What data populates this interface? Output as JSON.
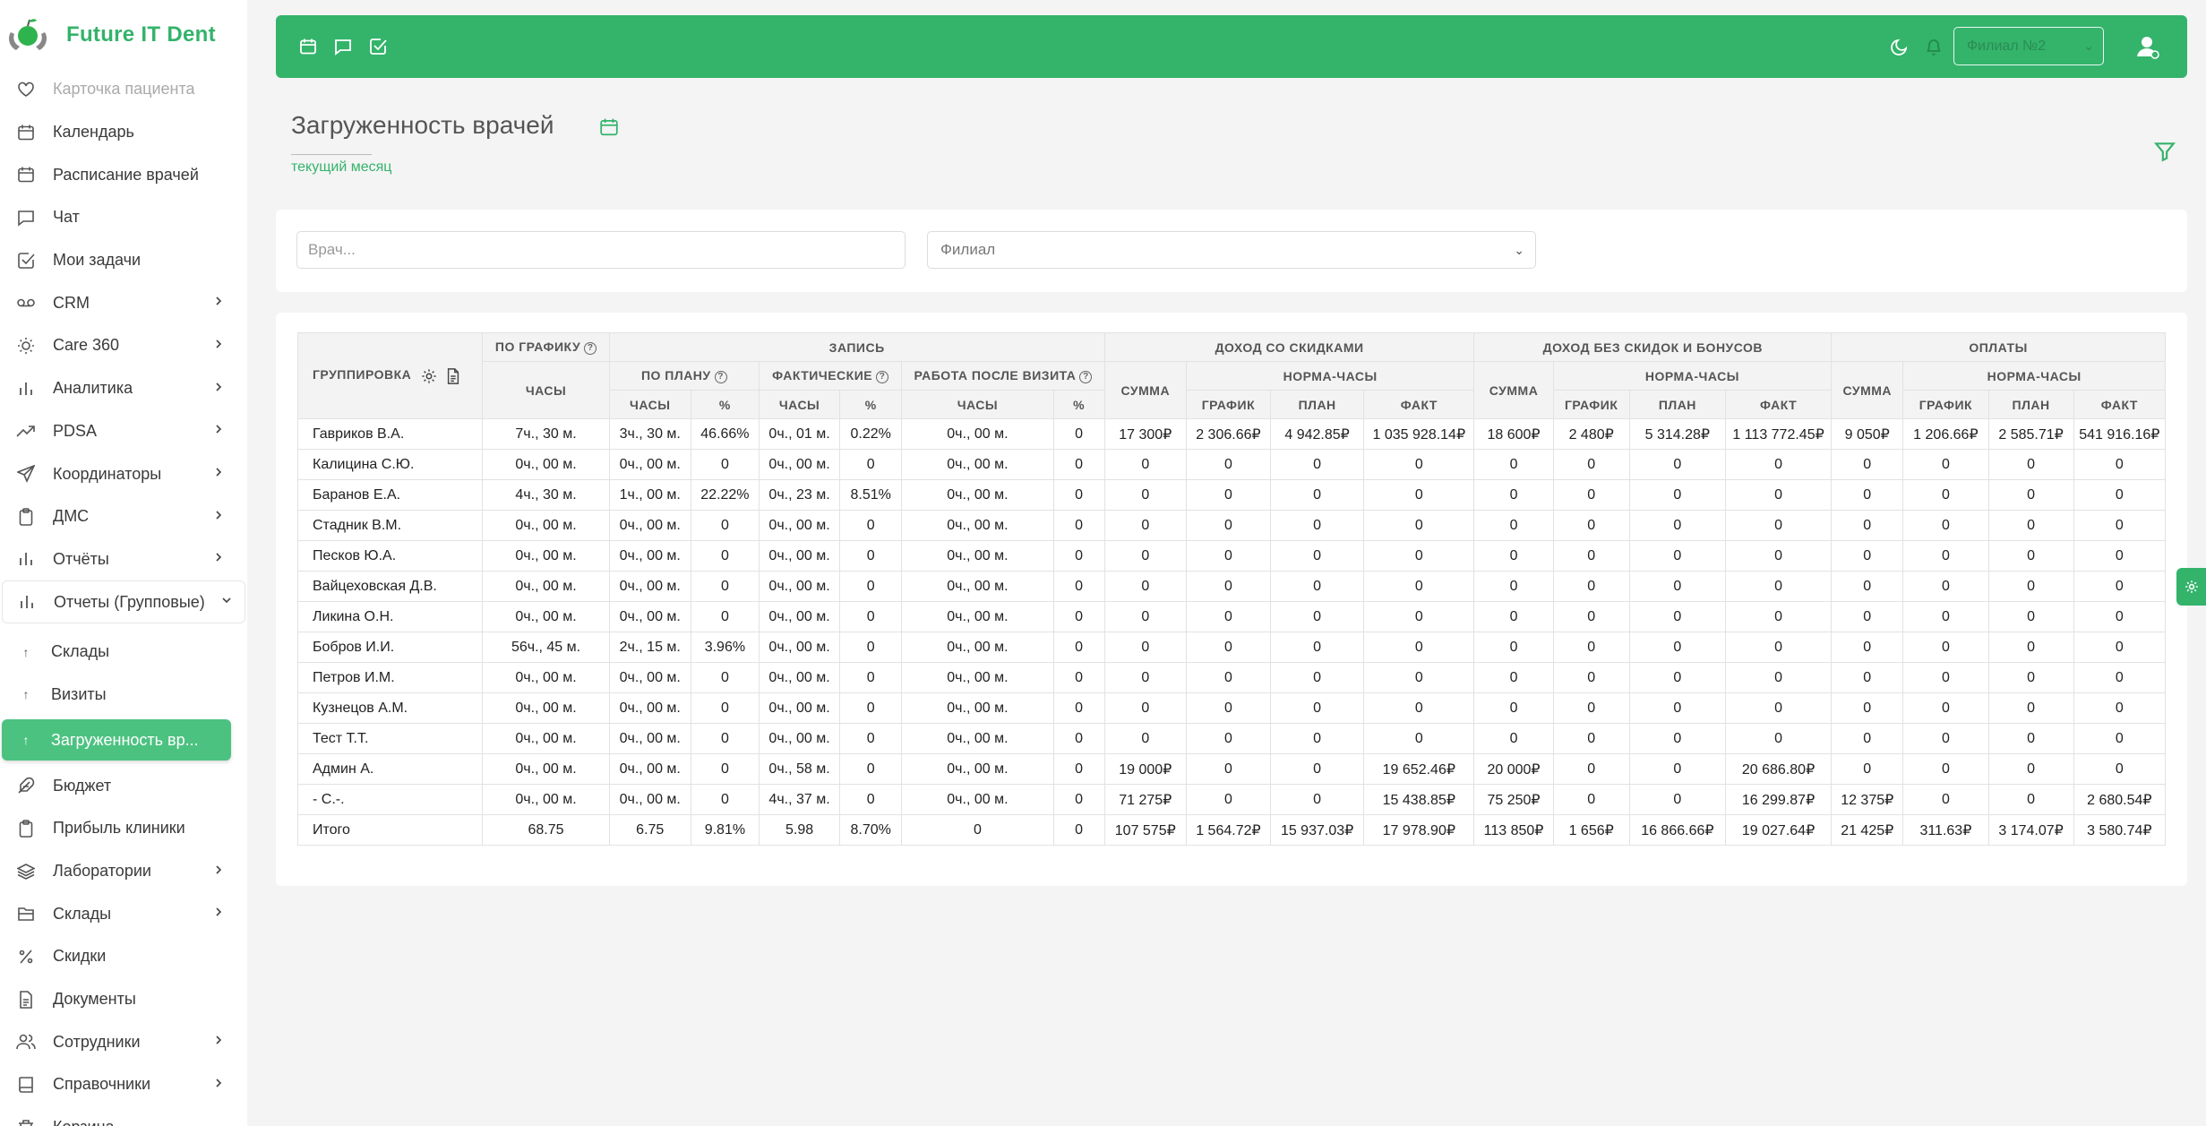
{
  "app": {
    "name": "Future IT Dent"
  },
  "sidebar": {
    "items": [
      {
        "label": "Карточка пациента",
        "icon": "heart-icon",
        "faded": true
      },
      {
        "label": "Календарь",
        "icon": "calendar-icon"
      },
      {
        "label": "Расписание врачей",
        "icon": "calendar-icon"
      },
      {
        "label": "Чат",
        "icon": "chat-icon"
      },
      {
        "label": "Мои задачи",
        "icon": "checkbox-icon"
      },
      {
        "label": "CRM",
        "icon": "voicemail-icon",
        "chevron": true
      },
      {
        "label": "Care 360",
        "icon": "sun-icon",
        "chevron": true
      },
      {
        "label": "Аналитика",
        "icon": "bar-chart-icon",
        "chevron": true
      },
      {
        "label": "PDSA",
        "icon": "trend-icon",
        "chevron": true
      },
      {
        "label": "Координаторы",
        "icon": "send-icon",
        "chevron": true
      },
      {
        "label": "ДМС",
        "icon": "clipboard-icon",
        "chevron": true
      },
      {
        "label": "Отчёты",
        "icon": "bar-chart-icon",
        "chevron": true
      },
      {
        "label": "Отчеты (Групповые)",
        "icon": "bar-chart-icon",
        "chevron_down": true,
        "group": true
      },
      {
        "label": "Склады",
        "icon": "sub-icon",
        "sub": true
      },
      {
        "label": "Визиты",
        "icon": "sub-icon",
        "sub": true
      },
      {
        "label": "Загруженность вр...",
        "icon": "sub-icon",
        "sub": true,
        "active": true
      },
      {
        "label": "Бюджет",
        "icon": "feather-icon"
      },
      {
        "label": "Прибыль клиники",
        "icon": "clipboard-icon"
      },
      {
        "label": "Лаборатории",
        "icon": "layers-icon",
        "chevron": true
      },
      {
        "label": "Склады",
        "icon": "archive-icon",
        "chevron": true
      },
      {
        "label": "Скидки",
        "icon": "percent-icon"
      },
      {
        "label": "Документы",
        "icon": "document-icon"
      },
      {
        "label": "Сотрудники",
        "icon": "users-icon",
        "chevron": true
      },
      {
        "label": "Справочники",
        "icon": "book-icon",
        "chevron": true
      },
      {
        "label": "Корзина",
        "icon": "trash-icon"
      }
    ]
  },
  "topbar": {
    "branch_value": "Филиал №2",
    "colors": {
      "accent": "#34b36b"
    }
  },
  "page": {
    "title": "Загруженность врачей",
    "period": "текущий месяц"
  },
  "filters": {
    "doctor_placeholder": "Врач...",
    "branch_placeholder": "Филиал"
  },
  "table": {
    "headers": {
      "grouping": "ГРУППИРОВКА",
      "by_schedule": "ПО ГРАФИКУ",
      "appointment": "ЗАПИСЬ",
      "income_disc": "ДОХОД СО СКИДКАМИ",
      "income_no_disc": "ДОХОД БЕЗ СКИДОК И БОНУСОВ",
      "payments": "ОПЛАТЫ",
      "hours": "ЧАСЫ",
      "by_plan": "ПО ПЛАНУ",
      "actual": "ФАКТИЧЕСКИЕ",
      "after_visit": "РАБОТА ПОСЛЕ ВИЗИТА",
      "sum": "СУММА",
      "norm_hours": "НОРМА-ЧАСЫ",
      "percent": "%",
      "schedule": "ГРАФИК",
      "plan": "ПЛАН",
      "fact": "ФАКТ"
    },
    "rows": [
      [
        "Гавриков В.А.",
        "7ч., 30 м.",
        "3ч., 30 м.",
        "46.66%",
        "0ч., 01 м.",
        "0.22%",
        "0ч., 00 м.",
        "0",
        "17 300₽",
        "2 306.66₽",
        "4 942.85₽",
        "1 035 928.14₽",
        "18 600₽",
        "2 480₽",
        "5 314.28₽",
        "1 113 772.45₽",
        "9 050₽",
        "1 206.66₽",
        "2 585.71₽",
        "541 916.16₽"
      ],
      [
        "Калицина С.Ю.",
        "0ч., 00 м.",
        "0ч., 00 м.",
        "0",
        "0ч., 00 м.",
        "0",
        "0ч., 00 м.",
        "0",
        "0",
        "0",
        "0",
        "0",
        "0",
        "0",
        "0",
        "0",
        "0",
        "0",
        "0",
        "0"
      ],
      [
        "Баранов Е.А.",
        "4ч., 30 м.",
        "1ч., 00 м.",
        "22.22%",
        "0ч., 23 м.",
        "8.51%",
        "0ч., 00 м.",
        "0",
        "0",
        "0",
        "0",
        "0",
        "0",
        "0",
        "0",
        "0",
        "0",
        "0",
        "0",
        "0"
      ],
      [
        "Стадник В.М.",
        "0ч., 00 м.",
        "0ч., 00 м.",
        "0",
        "0ч., 00 м.",
        "0",
        "0ч., 00 м.",
        "0",
        "0",
        "0",
        "0",
        "0",
        "0",
        "0",
        "0",
        "0",
        "0",
        "0",
        "0",
        "0"
      ],
      [
        "Песков Ю.А.",
        "0ч., 00 м.",
        "0ч., 00 м.",
        "0",
        "0ч., 00 м.",
        "0",
        "0ч., 00 м.",
        "0",
        "0",
        "0",
        "0",
        "0",
        "0",
        "0",
        "0",
        "0",
        "0",
        "0",
        "0",
        "0"
      ],
      [
        "Вайцеховская Д.В.",
        "0ч., 00 м.",
        "0ч., 00 м.",
        "0",
        "0ч., 00 м.",
        "0",
        "0ч., 00 м.",
        "0",
        "0",
        "0",
        "0",
        "0",
        "0",
        "0",
        "0",
        "0",
        "0",
        "0",
        "0",
        "0"
      ],
      [
        "Ликина О.Н.",
        "0ч., 00 м.",
        "0ч., 00 м.",
        "0",
        "0ч., 00 м.",
        "0",
        "0ч., 00 м.",
        "0",
        "0",
        "0",
        "0",
        "0",
        "0",
        "0",
        "0",
        "0",
        "0",
        "0",
        "0",
        "0"
      ],
      [
        "Бобров И.И.",
        "56ч., 45 м.",
        "2ч., 15 м.",
        "3.96%",
        "0ч., 00 м.",
        "0",
        "0ч., 00 м.",
        "0",
        "0",
        "0",
        "0",
        "0",
        "0",
        "0",
        "0",
        "0",
        "0",
        "0",
        "0",
        "0"
      ],
      [
        "Петров И.М.",
        "0ч., 00 м.",
        "0ч., 00 м.",
        "0",
        "0ч., 00 м.",
        "0",
        "0ч., 00 м.",
        "0",
        "0",
        "0",
        "0",
        "0",
        "0",
        "0",
        "0",
        "0",
        "0",
        "0",
        "0",
        "0"
      ],
      [
        "Кузнецов А.М.",
        "0ч., 00 м.",
        "0ч., 00 м.",
        "0",
        "0ч., 00 м.",
        "0",
        "0ч., 00 м.",
        "0",
        "0",
        "0",
        "0",
        "0",
        "0",
        "0",
        "0",
        "0",
        "0",
        "0",
        "0",
        "0"
      ],
      [
        "Тест Т.Т.",
        "0ч., 00 м.",
        "0ч., 00 м.",
        "0",
        "0ч., 00 м.",
        "0",
        "0ч., 00 м.",
        "0",
        "0",
        "0",
        "0",
        "0",
        "0",
        "0",
        "0",
        "0",
        "0",
        "0",
        "0",
        "0"
      ],
      [
        "Админ А.",
        "0ч., 00 м.",
        "0ч., 00 м.",
        "0",
        "0ч., 58 м.",
        "0",
        "0ч., 00 м.",
        "0",
        "19 000₽",
        "0",
        "0",
        "19 652.46₽",
        "20 000₽",
        "0",
        "0",
        "20 686.80₽",
        "0",
        "0",
        "0",
        "0"
      ],
      [
        "- С.-.",
        "0ч., 00 м.",
        "0ч., 00 м.",
        "0",
        "4ч., 37 м.",
        "0",
        "0ч., 00 м.",
        "0",
        "71 275₽",
        "0",
        "0",
        "15 438.85₽",
        "75 250₽",
        "0",
        "0",
        "16 299.87₽",
        "12 375₽",
        "0",
        "0",
        "2 680.54₽"
      ]
    ],
    "total": [
      "Итого",
      "68.75",
      "6.75",
      "9.81%",
      "5.98",
      "8.70%",
      "0",
      "0",
      "107 575₽",
      "1 564.72₽",
      "15 937.03₽",
      "17 978.90₽",
      "113 850₽",
      "1 656₽",
      "16 866.66₽",
      "19 027.64₽",
      "21 425₽",
      "311.63₽",
      "3 174.07₽",
      "3 580.74₽"
    ]
  }
}
